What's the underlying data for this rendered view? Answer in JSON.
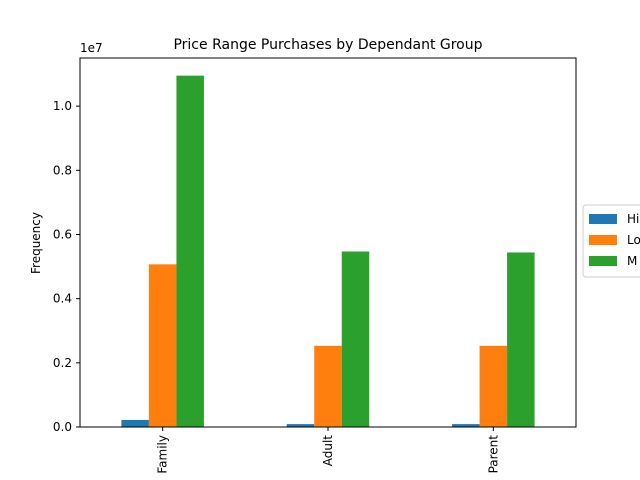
{
  "chart_data": {
    "type": "bar",
    "title": "Price Range Purchases by Dependant Group",
    "xlabel": "",
    "ylabel": "Frequency",
    "y_offset_label": "1e7",
    "y_scale": 10000000,
    "ylim": [
      0,
      11500000
    ],
    "yticks": [
      0,
      2000000,
      4000000,
      6000000,
      8000000,
      10000000
    ],
    "ytick_labels": [
      "0.0",
      "0.2",
      "0.4",
      "0.6",
      "0.8",
      "1.0"
    ],
    "categories": [
      "Family",
      "Young Adult",
      "Single Parent"
    ],
    "category_labels_visible": [
      "Family",
      "Adult",
      "Parent"
    ],
    "series": [
      {
        "name": "High",
        "legend_label": "Hi",
        "color": "#1f77b4",
        "values": [
          220000,
          90000,
          90000
        ]
      },
      {
        "name": "Low",
        "legend_label": "Lo",
        "color": "#ff7f0e",
        "values": [
          5070000,
          2530000,
          2530000
        ]
      },
      {
        "name": "Medium",
        "legend_label": "M",
        "color": "#2ca02c",
        "values": [
          10950000,
          5470000,
          5440000
        ]
      }
    ],
    "grid": false,
    "legend_position": "right"
  }
}
